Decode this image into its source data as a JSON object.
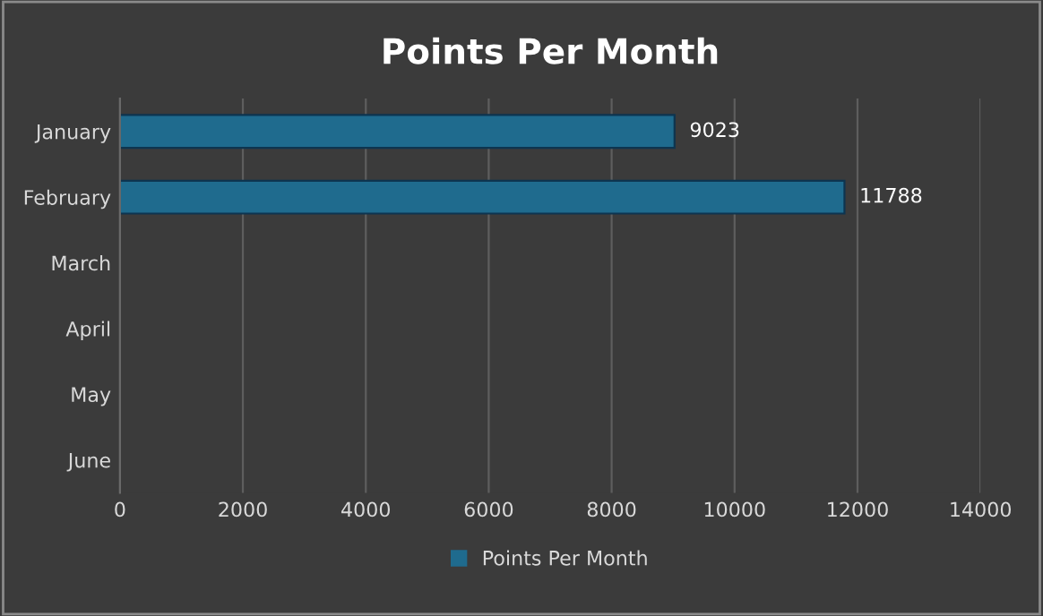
{
  "chart_data": {
    "type": "bar",
    "title": "Points Per Month",
    "orientation": "horizontal",
    "categories": [
      "January",
      "February",
      "March",
      "April",
      "May",
      "June"
    ],
    "series": [
      {
        "name": "Points Per Month",
        "color": "#1f6b8e",
        "values": [
          9023,
          11788,
          null,
          null,
          null,
          null
        ]
      }
    ],
    "xlim": [
      0,
      14000
    ],
    "xticks": [
      0,
      2000,
      4000,
      6000,
      8000,
      10000,
      12000,
      14000
    ],
    "grid": "x",
    "legend": "bottom",
    "data_labels": true
  }
}
